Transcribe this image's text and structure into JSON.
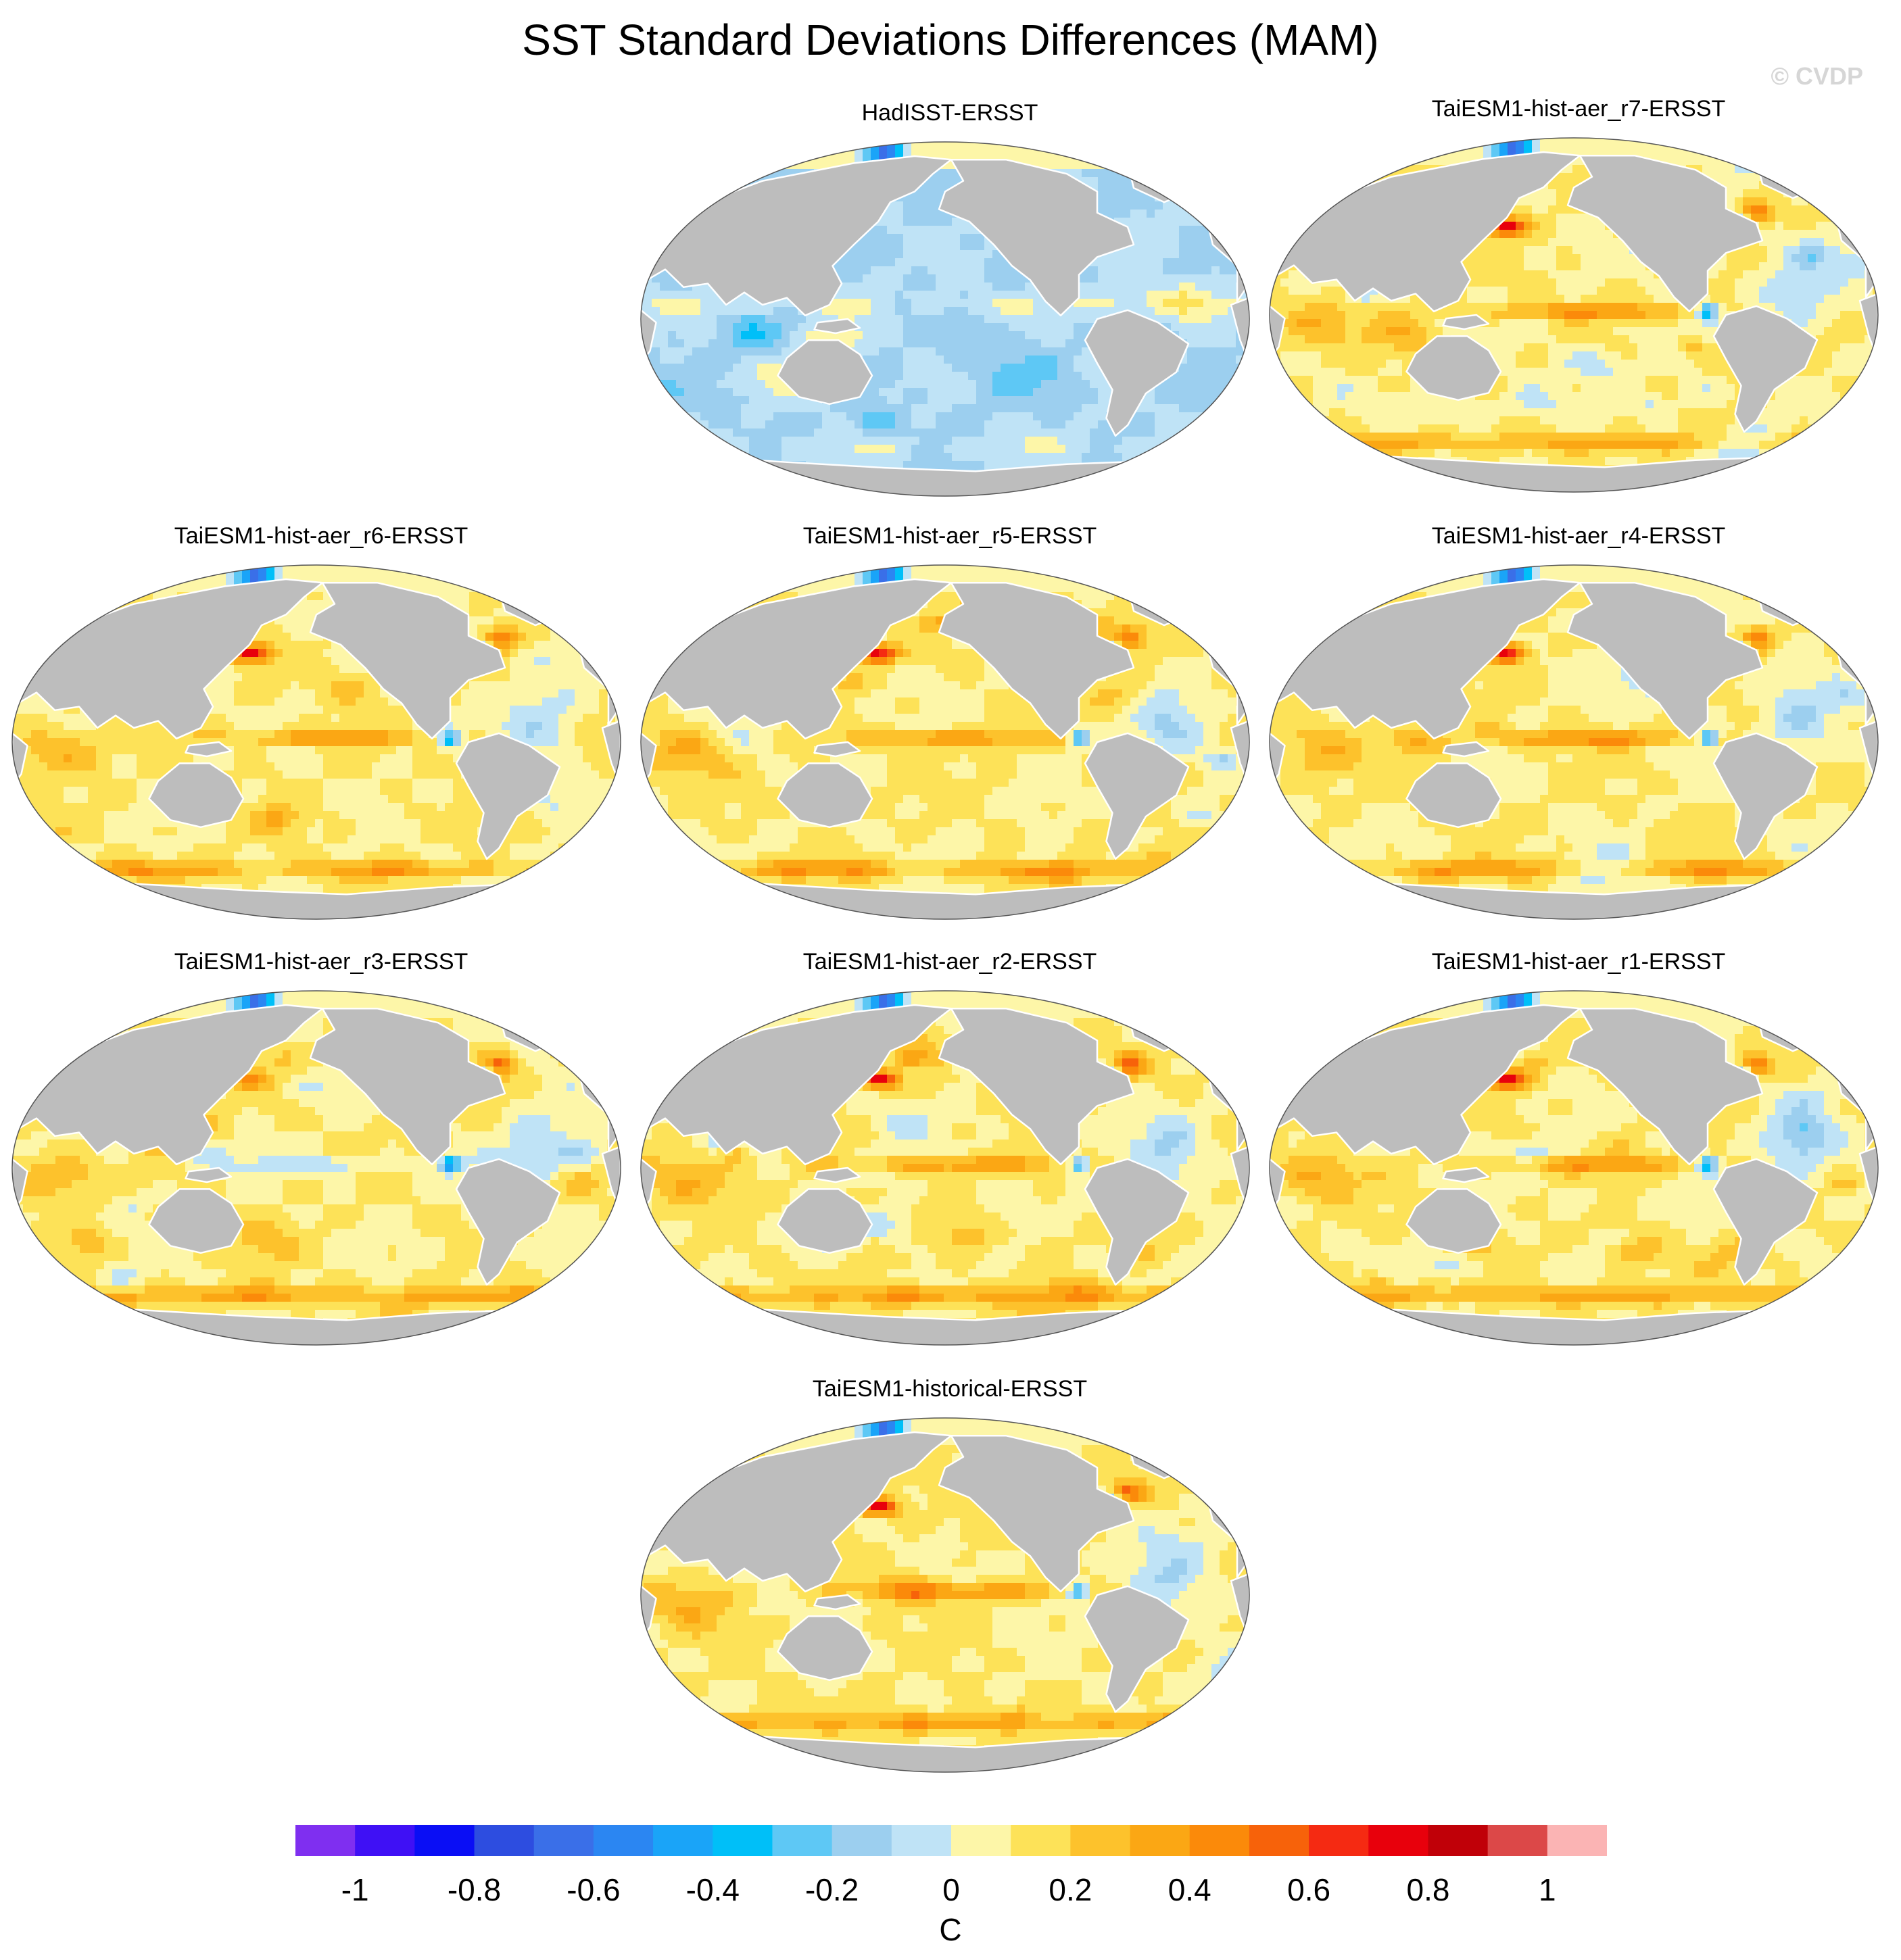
{
  "title": "SST Standard Deviations Differences (MAM)",
  "watermark": "© CVDP",
  "colors": {
    "land": "#bdbdbd",
    "coast": "#ffffff",
    "outline": "#555555",
    "palette": [
      "#7f2ff0",
      "#3f10f5",
      "#0a0ef5",
      "#2d4de0",
      "#3a6fe8",
      "#2b86f2",
      "#1aa4f8",
      "#00bff8",
      "#5ec8f5",
      "#9ccfef",
      "#bfe3f6",
      "#fdf6a8",
      "#fde258",
      "#fdc22c",
      "#fba714",
      "#fb8a0a",
      "#f7620a",
      "#f52a12",
      "#e8000c",
      "#c00008",
      "#dc4848",
      "#fbb4b4"
    ]
  },
  "chart_data": {
    "type": "map-panels",
    "variable": "SST standard deviation difference",
    "season": "MAM",
    "colorbar": {
      "unit": "C",
      "min": -1.1,
      "max": 1.1,
      "step": 0.1,
      "tick_values": [
        -1,
        -0.8,
        -0.6,
        -0.4,
        -0.2,
        0,
        0.2,
        0.4,
        0.6,
        0.8,
        1
      ],
      "tick_labels": [
        "-1",
        "-0.8",
        "-0.6",
        "-0.4",
        "-0.2",
        "0",
        "0.2",
        "0.4",
        "0.6",
        "0.8",
        "1"
      ]
    },
    "panels": [
      {
        "label": "HadISST-ERSST",
        "pattern": "obs"
      },
      {
        "label": "TaiESM1-hist-aer_r7-ERSST",
        "pattern": "model",
        "seed": 7
      },
      {
        "label": "TaiESM1-hist-aer_r6-ERSST",
        "pattern": "model",
        "seed": 6
      },
      {
        "label": "TaiESM1-hist-aer_r5-ERSST",
        "pattern": "model",
        "seed": 5
      },
      {
        "label": "TaiESM1-hist-aer_r4-ERSST",
        "pattern": "model",
        "seed": 4
      },
      {
        "label": "TaiESM1-hist-aer_r3-ERSST",
        "pattern": "model-weak",
        "seed": 3
      },
      {
        "label": "TaiESM1-hist-aer_r2-ERSST",
        "pattern": "model",
        "seed": 2
      },
      {
        "label": "TaiESM1-hist-aer_r1-ERSST",
        "pattern": "model",
        "seed": 1
      },
      {
        "label": "TaiESM1-historical-ERSST",
        "pattern": "model",
        "seed": 8
      }
    ]
  }
}
